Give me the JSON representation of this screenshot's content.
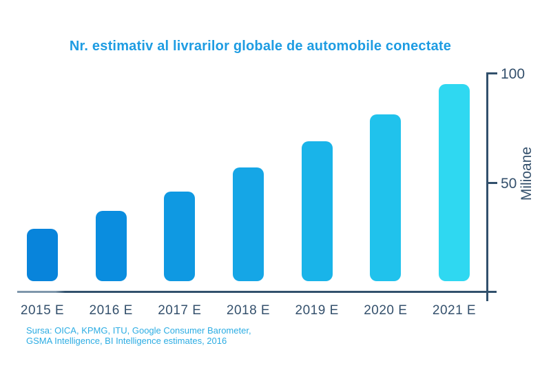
{
  "chart_data": {
    "type": "bar",
    "title": "Nr. estimativ al livrarilor globale de automobile conectate",
    "categories": [
      "2015 E",
      "2016 E",
      "2017 E",
      "2018 E",
      "2019 E",
      "2020 E",
      "2021 E"
    ],
    "values": [
      29,
      37,
      46,
      57,
      69,
      81,
      95
    ],
    "xlabel": "",
    "ylabel": "Milioane",
    "ylim": [
      0,
      105
    ],
    "y_ticks": [
      50,
      100
    ],
    "y_axis_side": "right",
    "grid": false,
    "legend": false,
    "bar_colors": [
      "#0884DB",
      "#0A8DDF",
      "#0F99E2",
      "#15A6E6",
      "#19B4E9",
      "#20C2EC",
      "#2FD8F1"
    ],
    "colors": {
      "title": "#1E9CE2",
      "axis": "#31506C",
      "labels": "#34506C",
      "source": "#2BACE3"
    },
    "source_lines": [
      "Sursa: OICA, KPMG, ITU, Google Consumer Barometer,",
      "GSMA Intelligence, BI Intelligence estimates, 2016"
    ]
  }
}
